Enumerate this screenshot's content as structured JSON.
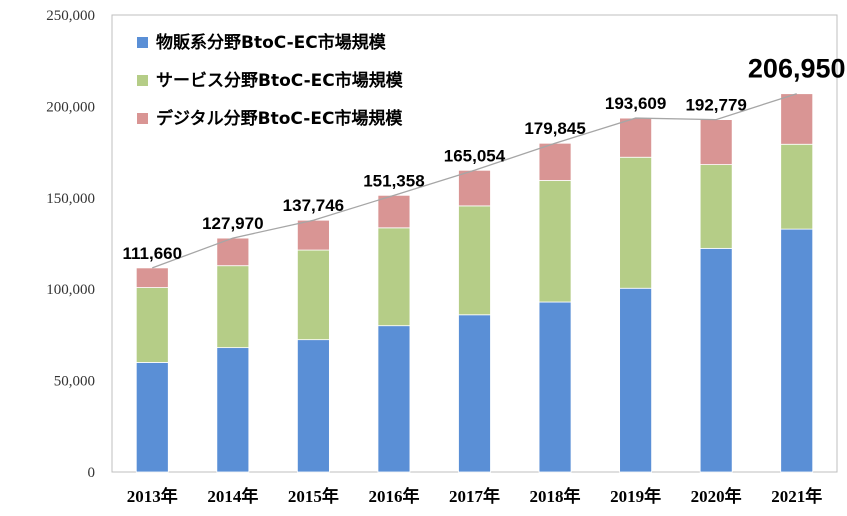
{
  "chart_data": {
    "type": "bar",
    "stacked": true,
    "categories": [
      "2013年",
      "2014年",
      "2015年",
      "2016年",
      "2017年",
      "2018年",
      "2019年",
      "2020年",
      "2021年"
    ],
    "series": [
      {
        "name": "物販系分野BtoC-EC市場規模",
        "color": "#5a8fd6",
        "values": [
          59931,
          68043,
          72398,
          80043,
          86008,
          92992,
          100515,
          122333,
          132865
        ]
      },
      {
        "name": "サービス分野BtoC-EC市場規模",
        "color": "#b5cd87",
        "values": [
          40956,
          44816,
          49014,
          53532,
          59568,
          66471,
          71672,
          45832,
          46424
        ]
      },
      {
        "name": "デジタル分野BtoC-EC市場規模",
        "color": "#d99594",
        "values": [
          10773,
          15111,
          16334,
          17782,
          19478,
          20382,
          21422,
          24614,
          27661
        ]
      }
    ],
    "totals": [
      111660,
      127970,
      137746,
      151358,
      165054,
      179845,
      193609,
      192779,
      206950
    ],
    "total_labels": [
      "111,660",
      "127,970",
      "137,746",
      "151,358",
      "165,054",
      "179,845",
      "193,609",
      "192,779",
      "206,950"
    ],
    "ylim": [
      0,
      250000
    ],
    "y_ticks": [
      0,
      50000,
      100000,
      150000,
      200000,
      250000
    ],
    "y_tick_labels": [
      "0",
      "50,000",
      "100,000",
      "150,000",
      "200,000",
      "250,000"
    ],
    "title": "",
    "xlabel": "",
    "ylabel": "",
    "legend": "top-left",
    "grid": false,
    "trend_line_color": "#a6a6a6"
  }
}
